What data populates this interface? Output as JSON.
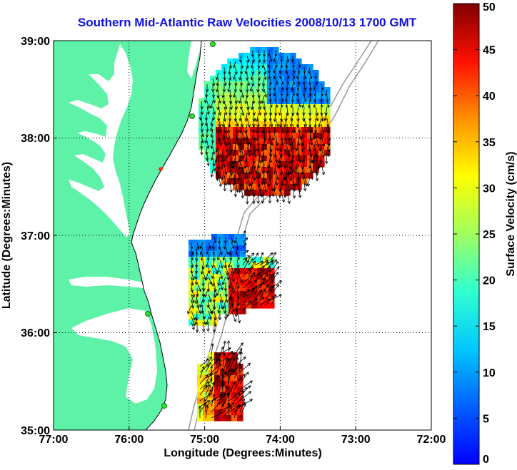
{
  "title": "Southern Mid-Atlantic Raw Velocities 2008/10/13 1700 GMT",
  "map": {
    "xlabel": "Longitude (Degrees:Minutes)",
    "ylabel": "Latitude (Degrees:Minutes)",
    "lon_ticks": [
      "77:00",
      "76:00",
      "75:00",
      "74:00",
      "73:00",
      "72:00"
    ],
    "lat_ticks": [
      "39:00",
      "38:00",
      "37:00",
      "36:00",
      "35:00"
    ],
    "lon_range": [
      -77,
      -72
    ],
    "lat_range": [
      35,
      39
    ],
    "land_color": "#5ef2a8",
    "grid": "dotted"
  },
  "colorbar": {
    "label": "Surface Velocity (cm/s)",
    "ticks": [
      "0",
      "5",
      "10",
      "15",
      "20",
      "25",
      "30",
      "35",
      "40",
      "45",
      "50"
    ],
    "range": [
      0,
      50
    ],
    "colormap": "jet"
  }
}
